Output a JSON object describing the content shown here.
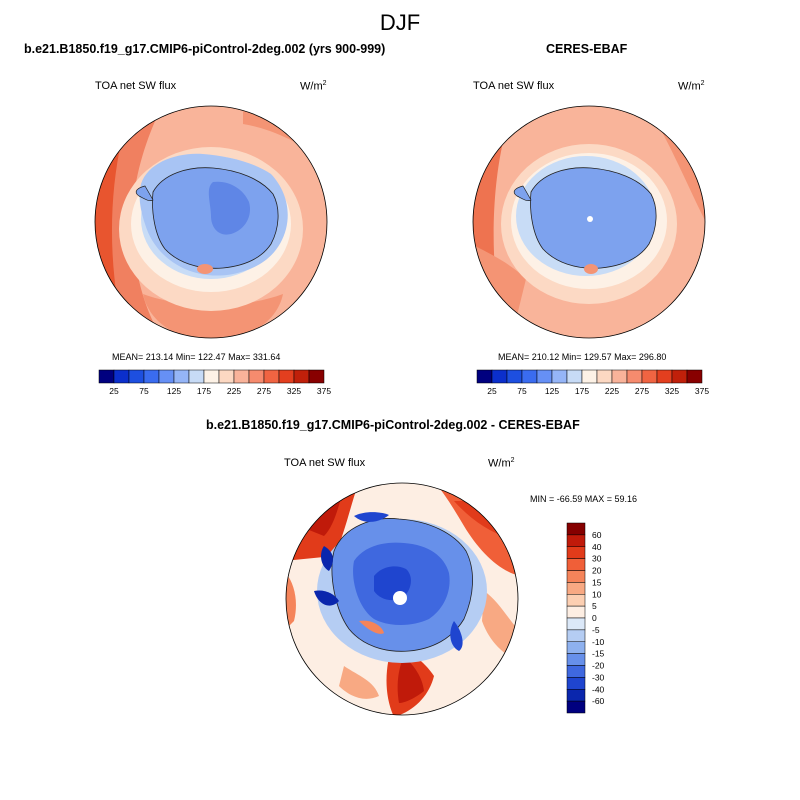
{
  "title": "DJF",
  "panels": {
    "left": {
      "title": "b.e21.B1850.f19_g17.CMIP6-piControl-2deg.002 (yrs 900-999)",
      "variable": "TOA net SW flux",
      "unit_base": "W/m",
      "unit_exp": "2",
      "stats": "MEAN= 213.14  Min= 122.47  Max= 331.64"
    },
    "right": {
      "title": "CERES-EBAF",
      "variable": "TOA net SW flux",
      "unit_base": "W/m",
      "unit_exp": "2",
      "stats": "MEAN= 210.12  Min= 129.57  Max= 296.80"
    },
    "diff": {
      "title": "b.e21.B1850.f19_g17.CMIP6-piControl-2deg.002 - CERES-EBAF",
      "variable": "TOA net SW flux",
      "unit_base": "W/m",
      "unit_exp": "2",
      "stats": "MIN = -66.59 MAX =  59.16"
    }
  },
  "colorbars": {
    "abs": {
      "colors": [
        "#00007f",
        "#0b2fcc",
        "#1d4fe0",
        "#3a6cf0",
        "#6690f5",
        "#95b5f7",
        "#c7dbf6",
        "#fdf2e6",
        "#fcd8c2",
        "#f9b39a",
        "#f68b6e",
        "#f06442",
        "#e33f1f",
        "#c0200a",
        "#880000"
      ],
      "labels": [
        "25",
        "75",
        "125",
        "175",
        "225",
        "275",
        "325",
        "375"
      ]
    },
    "diff": {
      "colors": [
        "#850000",
        "#c01a0a",
        "#e13b1a",
        "#f05f38",
        "#f5845a",
        "#f8a983",
        "#fccfb2",
        "#fdeee3",
        "#dbe8f8",
        "#b5cdf3",
        "#8eb1ef",
        "#6790ea",
        "#3f68df",
        "#1f45cf",
        "#0a26ad",
        "#00007f"
      ],
      "labels": [
        "60",
        "40",
        "30",
        "20",
        "15",
        "10",
        "5",
        "0",
        "-5",
        "-10",
        "-15",
        "-20",
        "-30",
        "-40",
        "-60"
      ]
    }
  }
}
